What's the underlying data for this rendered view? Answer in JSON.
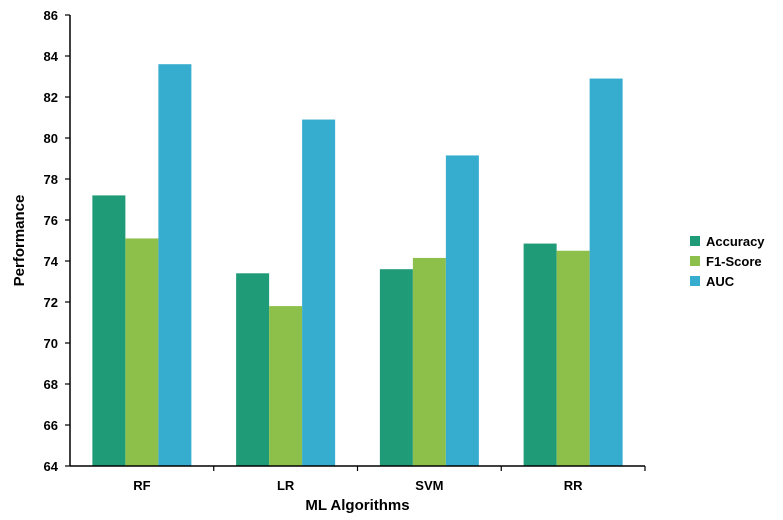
{
  "chart_data": {
    "type": "bar",
    "title": "",
    "xlabel": "ML  Algorithms",
    "ylabel": "Performance",
    "categories": [
      "RF",
      "LR",
      "SVM",
      "RR"
    ],
    "series": [
      {
        "name": "Accuracy",
        "color": "#1f9b78",
        "values": [
          77.2,
          73.4,
          73.6,
          74.85
        ]
      },
      {
        "name": "F1-Score",
        "color": "#8cc04b",
        "values": [
          75.1,
          71.8,
          74.15,
          74.5
        ]
      },
      {
        "name": "AUC",
        "color": "#36adcf",
        "values": [
          83.6,
          80.9,
          79.15,
          82.9
        ]
      }
    ],
    "ylim": [
      64,
      86
    ],
    "yticks": [
      64,
      66,
      68,
      70,
      72,
      74,
      76,
      78,
      80,
      82,
      84,
      86
    ],
    "grid": false,
    "legend_position": "right"
  }
}
